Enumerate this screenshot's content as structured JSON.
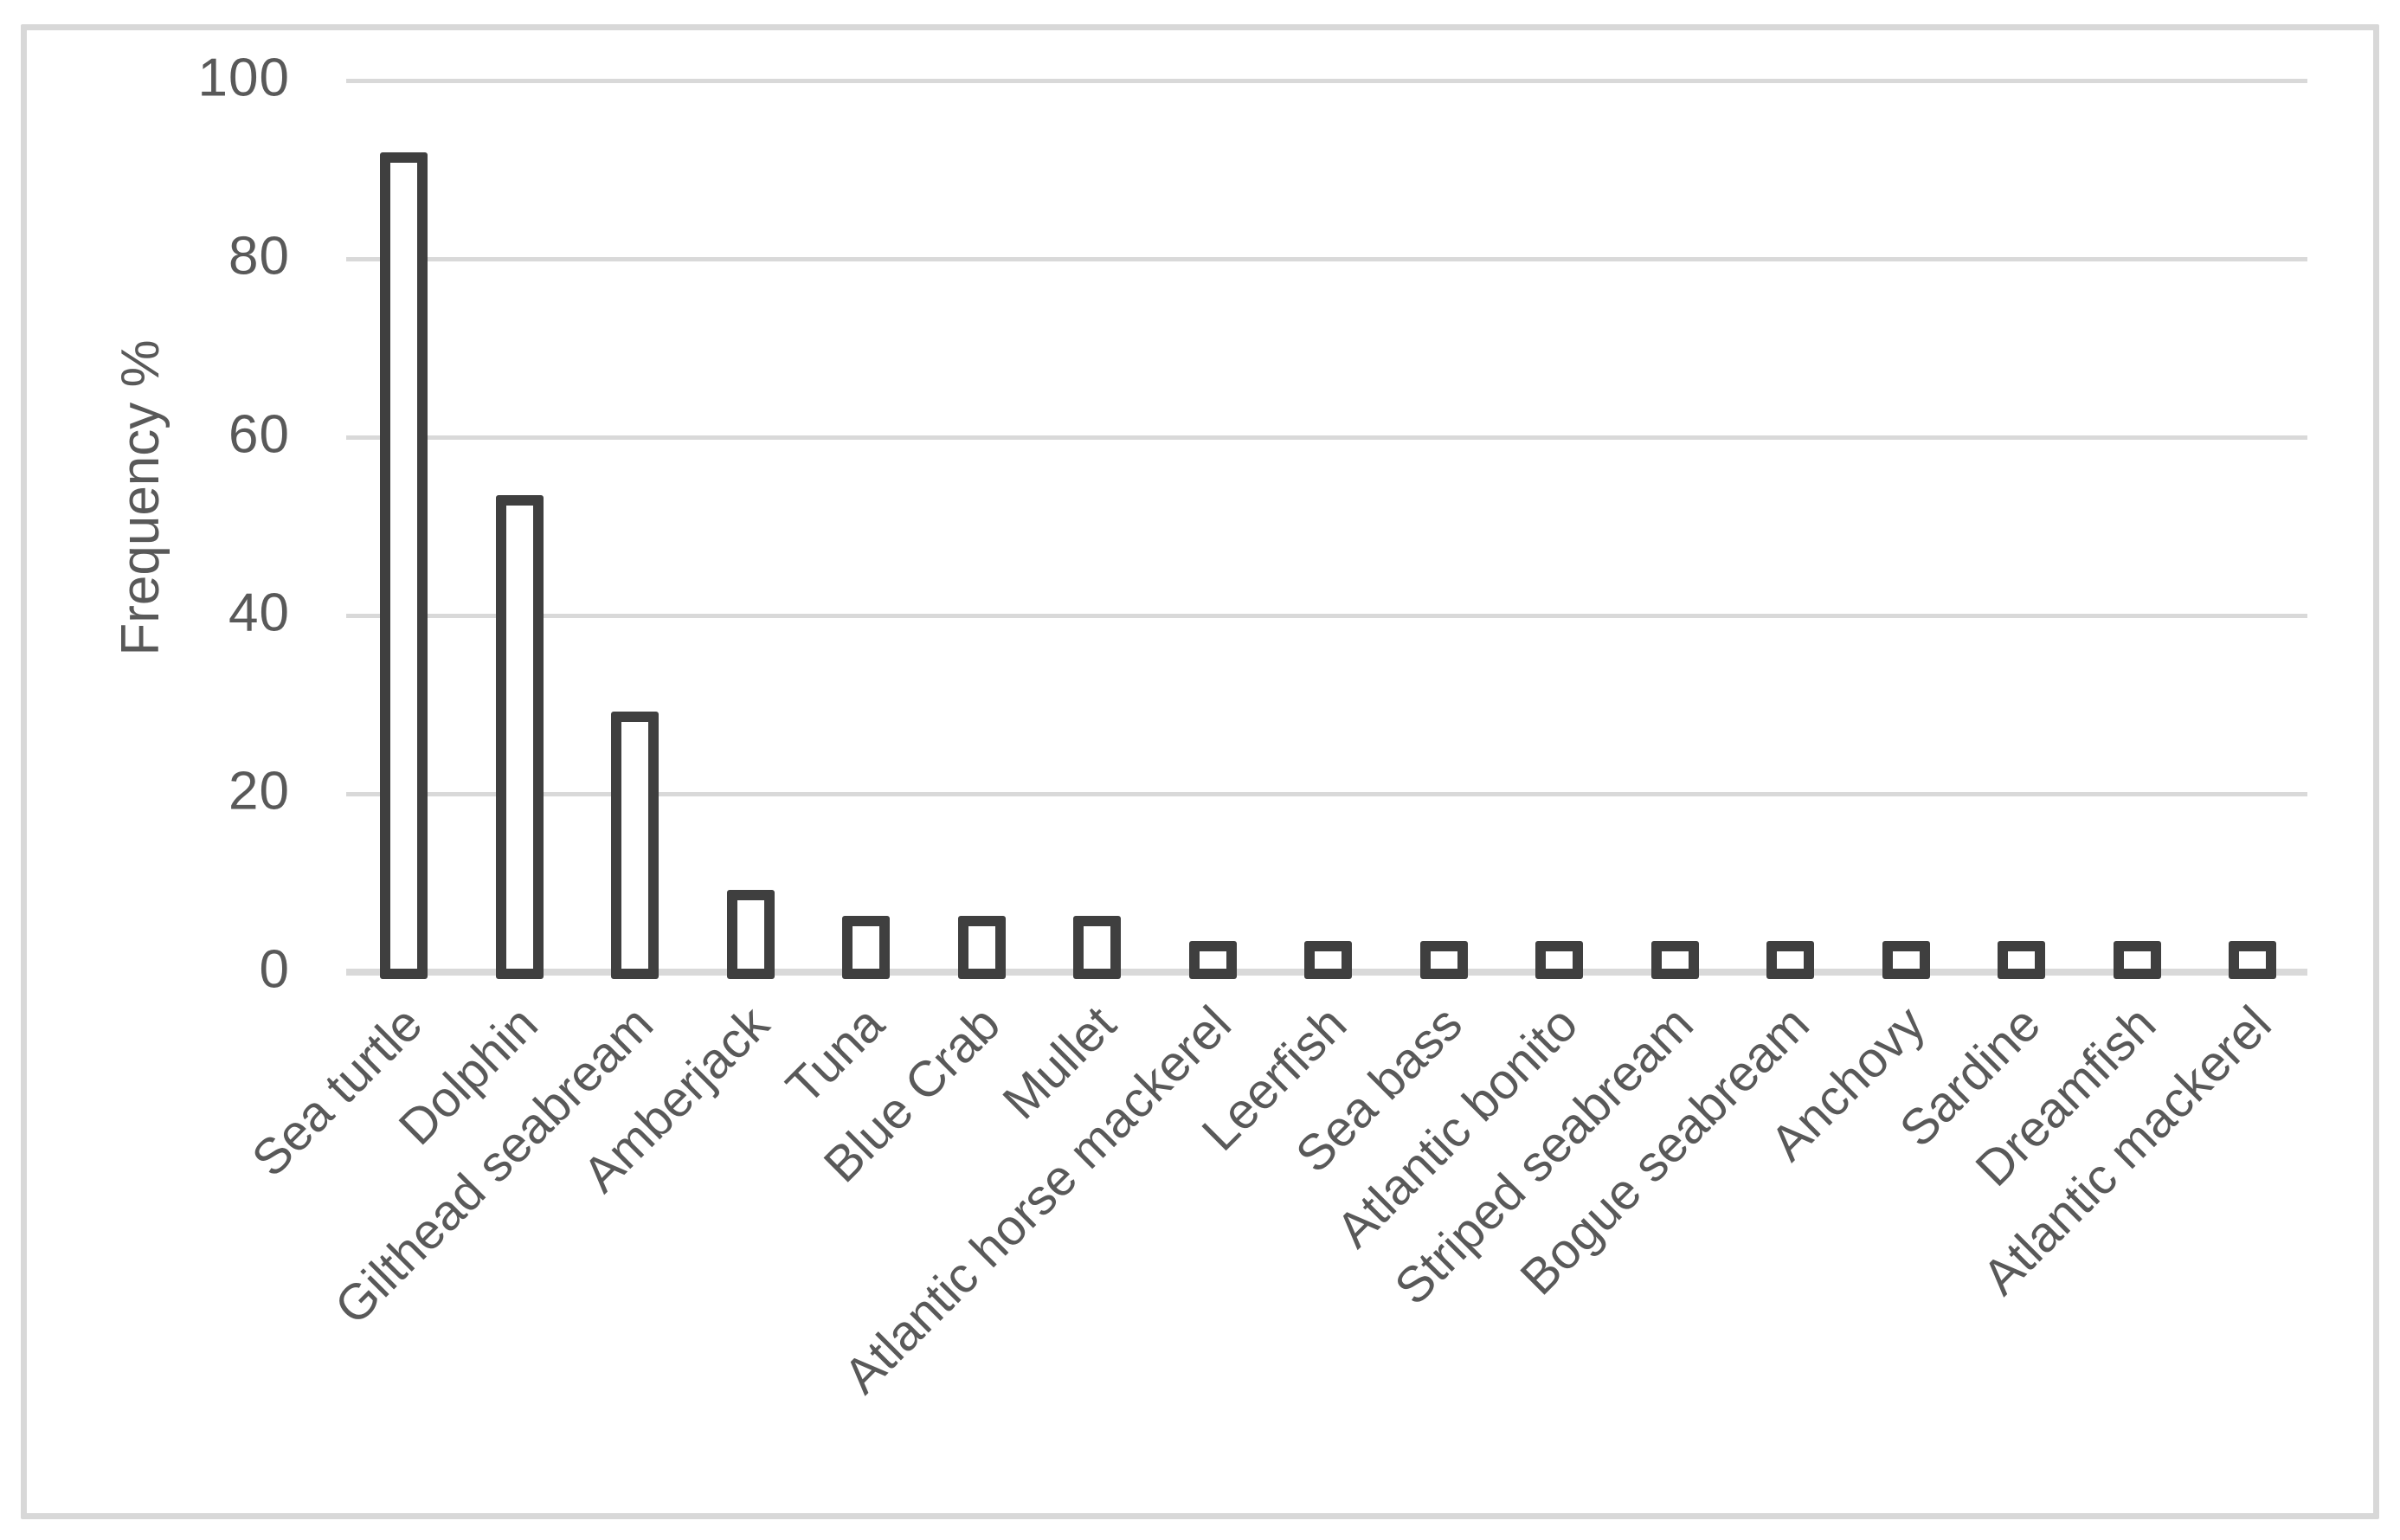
{
  "chart_data": {
    "type": "bar",
    "title": "",
    "xlabel": "",
    "ylabel": "Frequency %",
    "ylim": [
      0,
      100
    ],
    "yticks": [
      0,
      20,
      40,
      60,
      80,
      100
    ],
    "grid": "horizontal gridlines at each y tick",
    "legend": "none",
    "categories": [
      "Sea turtle",
      "Dolphin",
      "Gilthead seabream",
      "Amberjack",
      "Tuna",
      "Blue Crab",
      "Mullet",
      "Atlantic horse mackerel",
      "Leerfish",
      "Sea bass",
      "Atlantic bonito",
      "Striped seabream",
      "Bogue seabream",
      "Anchovy",
      "Sardine",
      "Dreamfish",
      "Atlantic mackerel"
    ],
    "values": [
      91.4,
      52.9,
      28.6,
      8.6,
      5.7,
      5.7,
      5.7,
      2.9,
      2.9,
      2.9,
      2.9,
      2.9,
      2.9,
      2.9,
      2.9,
      2.9,
      2.9
    ]
  },
  "colors": {
    "bar_fill": "#ffffff",
    "bar_border": "#3f3f3f",
    "gridline": "#d9d9d9",
    "frame_border": "#d8d8d8",
    "text": "#595959",
    "background": "#ffffff"
  }
}
